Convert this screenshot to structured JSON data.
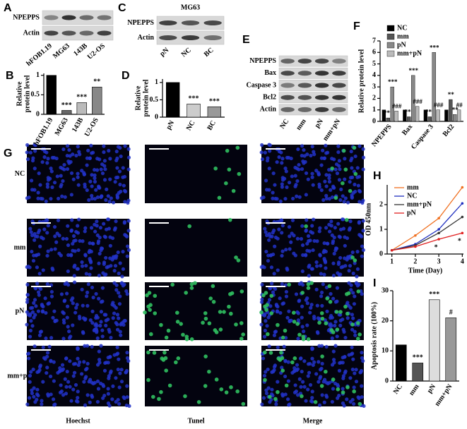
{
  "blots": [
    {
      "panel": "A",
      "rows": [
        "NPEPPS",
        "Actin"
      ],
      "lanes": [
        "hFOB1.19",
        "MG63",
        "143B",
        "U2-OS"
      ]
    },
    {
      "panel": "C",
      "title": "MG63",
      "rows": [
        "NPEPPS",
        "Actin"
      ],
      "lanes": [
        "pN",
        "NC",
        "BC"
      ]
    },
    {
      "panel": "E",
      "rows": [
        "NPEPPS",
        "Bax",
        "Caspase 3",
        "Bcl2",
        "Actin"
      ],
      "lanes": [
        "NC",
        "mm",
        "pN",
        "mm+pN"
      ]
    }
  ],
  "microscopy": {
    "panel": "G",
    "rows": [
      "NC",
      "mm",
      "pN",
      "mm+pN"
    ],
    "columns": [
      "Hoechst",
      "Tunel",
      "Merge"
    ]
  },
  "chart_data": [
    {
      "type": "bar",
      "panel": "B",
      "ylabel": [
        "Relative",
        "protein level"
      ],
      "categories": [
        "hFOB1.19",
        "MG63",
        "143B",
        "U2-OS"
      ],
      "values": [
        1.0,
        0.1,
        0.3,
        0.7
      ],
      "colors": [
        "#000000",
        "#666666",
        "#bbbbbb",
        "#888888"
      ],
      "annotations": [
        null,
        "***",
        "***",
        "**"
      ],
      "ylim": [
        0,
        1.05
      ],
      "yticks": [
        0,
        0.5,
        1
      ]
    },
    {
      "type": "bar",
      "panel": "D",
      "ylabel": [
        "Relative",
        "protein level"
      ],
      "categories": [
        "pN",
        "NC",
        "BC"
      ],
      "values": [
        1.0,
        0.38,
        0.3
      ],
      "colors": [
        "#000000",
        "#cccccc",
        "#999999"
      ],
      "annotations": [
        null,
        "***",
        "***"
      ],
      "ylim": [
        0,
        1.1
      ],
      "yticks": [
        0,
        0.5,
        1
      ]
    },
    {
      "type": "bar",
      "panel": "F",
      "ylabel": "Relative protein level",
      "categories": [
        "NPEPPS",
        "Bax",
        "Caspase 3",
        "Bcl2"
      ],
      "series": [
        {
          "name": "NC",
          "color": "#000000",
          "values": [
            1,
            1,
            1,
            1
          ],
          "annotations": [
            null,
            null,
            null,
            null
          ]
        },
        {
          "name": "mm",
          "color": "#555555",
          "values": [
            0.3,
            0.4,
            0.4,
            1.9
          ],
          "annotations": [
            "***",
            "***",
            "***",
            "**"
          ]
        },
        {
          "name": "pN",
          "color": "#888888",
          "values": [
            3.0,
            4.0,
            6.0,
            0.6
          ],
          "annotations": [
            "***",
            "***",
            "***",
            "**"
          ]
        },
        {
          "name": "mm+pN",
          "color": "#bbbbbb",
          "values": [
            0.9,
            1.3,
            1.0,
            1.0
          ],
          "annotations": [
            "###",
            "###",
            "###",
            "##"
          ]
        }
      ],
      "ylim": [
        0,
        7
      ],
      "yticks": [
        0,
        1,
        2,
        3,
        4,
        5,
        6,
        7
      ]
    },
    {
      "type": "line",
      "panel": "H",
      "xlabel": "Time (Day)",
      "ylabel": "OD 450nm",
      "x": [
        1,
        2,
        3,
        4
      ],
      "series": [
        {
          "name": "mm",
          "color": "#f07020",
          "values": [
            0.15,
            0.75,
            1.45,
            2.7
          ]
        },
        {
          "name": "NC",
          "color": "#2030c0",
          "values": [
            0.15,
            0.4,
            1.0,
            2.05
          ]
        },
        {
          "name": "mm+pN",
          "color": "#333333",
          "values": [
            0.15,
            0.35,
            0.85,
            1.5
          ]
        },
        {
          "name": "pN",
          "color": "#e02020",
          "values": [
            0.15,
            0.3,
            0.6,
            0.85
          ]
        }
      ],
      "annotations": [
        {
          "x": 3,
          "text": "*"
        },
        {
          "x": 4,
          "text": "*"
        }
      ],
      "xlim": [
        0.8,
        4.05
      ],
      "xticks": [
        1,
        2,
        3,
        4
      ],
      "ylim": [
        0,
        2.8
      ],
      "yticks": [
        0,
        1,
        2
      ]
    },
    {
      "type": "bar",
      "panel": "I",
      "ylabel": "Apoptosis rate (100%)",
      "categories": [
        "NC",
        "mm",
        "pN",
        "mm+pN"
      ],
      "values": [
        12,
        6,
        27,
        21
      ],
      "colors": [
        "#000000",
        "#555555",
        "#dddddd",
        "#999999"
      ],
      "annotations": [
        null,
        "***",
        "***",
        "#"
      ],
      "ylim": [
        0,
        30
      ],
      "yticks": [
        0,
        10,
        20,
        30
      ]
    }
  ]
}
